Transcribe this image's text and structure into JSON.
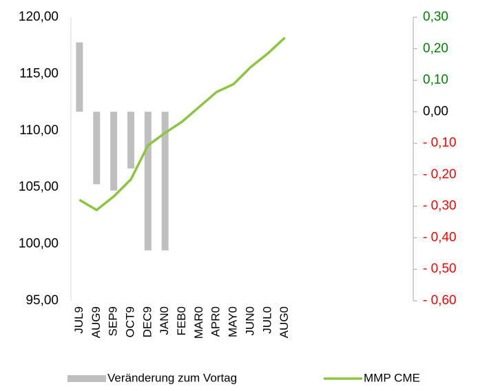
{
  "chart_data": {
    "type": "bar-line",
    "categories": [
      "JUL9",
      "AUG9",
      "SEP9",
      "OCT9",
      "DEC9",
      "JAN0",
      "FEB0",
      "MAR0",
      "APR0",
      "MAY0",
      "JUN0",
      "JUL0",
      "AUG0",
      null,
      null,
      null,
      null,
      null,
      null,
      null
    ],
    "series": [
      {
        "name": "Veränderung zum Vortag",
        "type": "bar",
        "axis": "y2",
        "color": "#bfbfbf",
        "values": [
          0.22,
          -0.23,
          -0.25,
          -0.18,
          -0.44,
          -0.44,
          null,
          null,
          null,
          null,
          null,
          null,
          null,
          null,
          null,
          null,
          null,
          null,
          null,
          null
        ]
      },
      {
        "name": "MMP CME",
        "type": "line",
        "axis": "y",
        "color": "#8cc63f",
        "values": [
          103.9,
          103.0,
          104.2,
          105.7,
          108.7,
          109.8,
          110.8,
          112.1,
          113.4,
          114.1,
          115.6,
          116.8,
          118.2,
          null,
          null,
          null,
          null,
          null,
          null,
          null
        ]
      }
    ],
    "ylim": [
      95,
      120
    ],
    "yticks": [
      {
        "value": 95,
        "label": "95,00"
      },
      {
        "value": 100,
        "label": "100,00"
      },
      {
        "value": 105,
        "label": "105,00"
      },
      {
        "value": 110,
        "label": "110,00"
      },
      {
        "value": 115,
        "label": "115,00"
      },
      {
        "value": 120,
        "label": "120,00"
      }
    ],
    "y2lim": [
      -0.6,
      0.3
    ],
    "y2ticks": [
      {
        "value": -0.6,
        "label": "- 0,60"
      },
      {
        "value": -0.5,
        "label": "- 0,50"
      },
      {
        "value": -0.4,
        "label": "- 0,40"
      },
      {
        "value": -0.3,
        "label": "- 0,30"
      },
      {
        "value": -0.2,
        "label": "- 0,20"
      },
      {
        "value": -0.1,
        "label": "- 0,10"
      },
      {
        "value": 0,
        "label": "0,00"
      },
      {
        "value": 0.1,
        "label": "0,10"
      },
      {
        "value": 0.2,
        "label": "0,20"
      },
      {
        "value": 0.3,
        "label": "0,30"
      }
    ],
    "y2tick_colors": [
      "#ff0000",
      "#ff0000",
      "#ff0000",
      "#ff0000",
      "#ff0000",
      "#ff0000",
      "#000000",
      "#008000",
      "#008000",
      "#008000"
    ],
    "legend": "bottom"
  }
}
